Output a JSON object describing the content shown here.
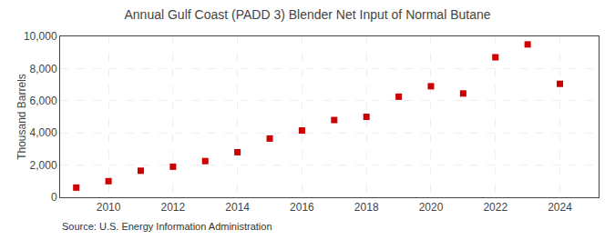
{
  "chart_data": {
    "type": "scatter",
    "title": "Annual Gulf Coast (PADD 3) Blender Net Input of Normal Butane",
    "ylabel": "Thousand Barrels",
    "annotations": [
      "Source: U.S. Energy Information Administration"
    ],
    "x": [
      2009,
      2010,
      2011,
      2012,
      2013,
      2014,
      2015,
      2016,
      2017,
      2018,
      2019,
      2020,
      2021,
      2022,
      2023,
      2024
    ],
    "values": [
      600,
      1000,
      1650,
      1900,
      2250,
      2800,
      3650,
      4150,
      4800,
      5000,
      6250,
      6900,
      6450,
      8700,
      9500,
      7050
    ],
    "color": "#cc0000",
    "marker": "square",
    "xlim": [
      2008.5,
      2025.2
    ],
    "xticks": [
      2010,
      2012,
      2014,
      2016,
      2018,
      2020,
      2022,
      2024
    ],
    "ylim": [
      0,
      10000
    ],
    "yticks": [
      0,
      {
        "value": 2000,
        "label": "2,000"
      },
      {
        "value": 4000,
        "label": "4,000"
      },
      {
        "value": 6000,
        "label": "6,000"
      },
      {
        "value": 8000,
        "label": "8,000"
      },
      {
        "value": 10000,
        "label": "10,000"
      }
    ],
    "grid": true
  }
}
